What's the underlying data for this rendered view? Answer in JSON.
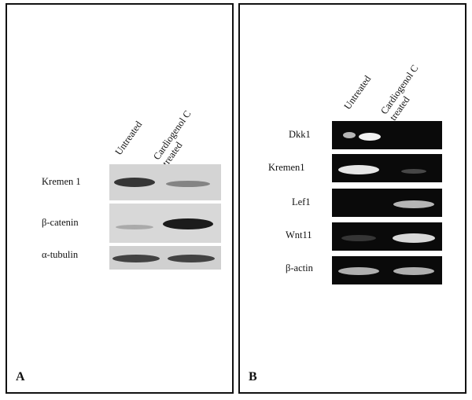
{
  "panel_a": {
    "letter": "A",
    "columns": [
      {
        "line1": "Untreated",
        "line2": ""
      },
      {
        "line1": "Cardiogenol C",
        "line2": "treated"
      }
    ],
    "rows": [
      {
        "label": "Kremen 1",
        "band_intensity": [
          0.85,
          0.45
        ]
      },
      {
        "label": "β-catenin",
        "band_intensity": [
          0.25,
          0.95
        ]
      },
      {
        "label": "α-tubulin",
        "band_intensity": [
          0.75,
          0.75
        ]
      }
    ]
  },
  "panel_b": {
    "letter": "B",
    "columns": [
      {
        "line1": "Untreated",
        "line2": ""
      },
      {
        "line1": "Cardiogenol C",
        "line2": "treated"
      }
    ],
    "rows": [
      {
        "label": "Dkk1",
        "band_intensity": [
          0.85,
          0.0
        ]
      },
      {
        "label": "Kremen1",
        "band_intensity": [
          0.95,
          0.2
        ]
      },
      {
        "label": "Lef1",
        "band_intensity": [
          0.0,
          0.75
        ]
      },
      {
        "label": "Wnt11",
        "band_intensity": [
          0.15,
          0.85
        ]
      },
      {
        "label": "β-actin",
        "band_intensity": [
          0.75,
          0.75
        ]
      }
    ]
  }
}
